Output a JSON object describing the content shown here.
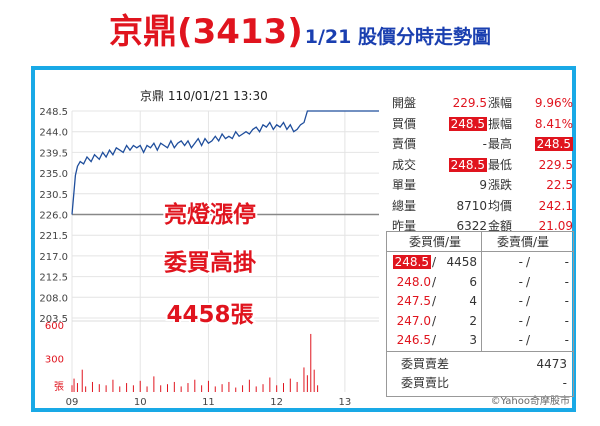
{
  "title": {
    "main": "京鼎(3413)",
    "sub": "1/21 股價分時走勢圖"
  },
  "chart_data": {
    "type": "line",
    "header": "京鼎  110/01/21 13:30",
    "price_axis": [
      "248.5",
      "244.0",
      "239.5",
      "235.0",
      "230.5",
      "226.0",
      "221.5",
      "217.0",
      "212.5",
      "208.0",
      "203.5"
    ],
    "volume_axis": [
      "600",
      "300",
      "張"
    ],
    "x_ticks": [
      "09",
      "10",
      "11",
      "12",
      "13"
    ],
    "ref_price": 226.0,
    "ylim": [
      203.5,
      248.5
    ],
    "price_series": {
      "x": [
        9.0,
        9.02,
        9.05,
        9.08,
        9.12,
        9.17,
        9.22,
        9.28,
        9.33,
        9.4,
        9.45,
        9.5,
        9.55,
        9.6,
        9.65,
        9.7,
        9.75,
        9.8,
        9.85,
        9.9,
        9.95,
        10.0,
        10.05,
        10.1,
        10.15,
        10.2,
        10.25,
        10.3,
        10.35,
        10.4,
        10.45,
        10.5,
        10.55,
        10.6,
        10.65,
        10.7,
        10.75,
        10.8,
        10.85,
        10.9,
        10.95,
        11.0,
        11.05,
        11.1,
        11.15,
        11.2,
        11.25,
        11.3,
        11.35,
        11.4,
        11.45,
        11.5,
        11.55,
        11.6,
        11.65,
        11.7,
        11.75,
        11.8,
        11.85,
        11.9,
        11.95,
        12.0,
        12.05,
        12.1,
        12.15,
        12.2,
        12.25,
        12.3,
        12.35,
        12.4,
        12.45,
        12.5,
        12.55,
        12.6,
        13.0,
        13.5
      ],
      "y": [
        226.0,
        229.5,
        234.5,
        236.5,
        237.5,
        237.0,
        238.5,
        237.5,
        239.0,
        238.0,
        239.5,
        238.5,
        240.0,
        239.0,
        240.5,
        240.0,
        239.5,
        241.0,
        240.0,
        241.0,
        240.5,
        241.0,
        239.5,
        241.0,
        240.5,
        241.5,
        240.0,
        241.5,
        241.0,
        240.5,
        242.0,
        240.5,
        241.5,
        242.0,
        241.0,
        242.0,
        240.5,
        241.5,
        242.5,
        241.0,
        242.5,
        241.5,
        242.0,
        243.0,
        242.0,
        243.5,
        242.5,
        243.0,
        242.5,
        244.0,
        243.0,
        243.5,
        244.0,
        243.5,
        244.5,
        245.0,
        244.0,
        245.5,
        245.0,
        246.0,
        244.5,
        245.5,
        245.0,
        246.0,
        244.5,
        245.5,
        244.0,
        244.5,
        245.5,
        246.0,
        248.5,
        248.5,
        248.5,
        248.5,
        248.5,
        248.5
      ]
    },
    "volume_series": {
      "x": [
        9.0,
        9.03,
        9.08,
        9.15,
        9.2,
        9.3,
        9.4,
        9.5,
        9.6,
        9.7,
        9.8,
        9.9,
        10.0,
        10.1,
        10.2,
        10.3,
        10.4,
        10.5,
        10.6,
        10.7,
        10.8,
        10.9,
        11.0,
        11.1,
        11.2,
        11.3,
        11.4,
        11.5,
        11.6,
        11.7,
        11.8,
        11.9,
        12.0,
        12.1,
        12.2,
        12.3,
        12.4,
        12.45,
        12.5,
        12.55,
        12.6
      ],
      "values": [
        60,
        120,
        80,
        200,
        50,
        90,
        70,
        60,
        110,
        50,
        80,
        60,
        100,
        50,
        140,
        60,
        70,
        90,
        50,
        80,
        110,
        60,
        100,
        50,
        70,
        90,
        40,
        60,
        110,
        50,
        70,
        130,
        60,
        80,
        120,
        90,
        220,
        150,
        520,
        200,
        60
      ]
    },
    "annotations": [
      "亮燈漲停",
      "委買高掛",
      "4458張"
    ],
    "watermark": "©Yahoo奇摩股市"
  },
  "quote": {
    "rows": [
      {
        "l1": "開盤",
        "v1": "229.5",
        "l2": "漲幅",
        "v2": "9.96%"
      },
      {
        "l1": "買價",
        "v1": "248.5",
        "l2": "振幅",
        "v2": "8.41%"
      },
      {
        "l1": "賣價",
        "v1": "-",
        "l2": "最高",
        "v2": "248.5"
      },
      {
        "l1": "成交",
        "v1": "248.5",
        "l2": "最低",
        "v2": "229.5"
      },
      {
        "l1": "單量",
        "v1": "9",
        "l2": "漲跌",
        "v2": "22.5"
      },
      {
        "l1": "總量",
        "v1": "8710",
        "l2": "均價",
        "v2": "242.1"
      },
      {
        "l1": "昨量",
        "v1": "6322",
        "l2": "金額",
        "v2": "21.09"
      }
    ],
    "book_headers": {
      "bid": "委買價/量",
      "ask": "委賣價/量"
    },
    "book": [
      {
        "bp": "248.5",
        "bq": "4458",
        "ap": "-",
        "aq": "-"
      },
      {
        "bp": "248.0",
        "bq": "6",
        "ap": "-",
        "aq": "-"
      },
      {
        "bp": "247.5",
        "bq": "4",
        "ap": "-",
        "aq": "-"
      },
      {
        "bp": "247.0",
        "bq": "2",
        "ap": "-",
        "aq": "-"
      },
      {
        "bp": "246.5",
        "bq": "3",
        "ap": "-",
        "aq": "-"
      }
    ],
    "diff_label": "委買賣差",
    "diff_value": "4473",
    "ratio_label": "委買賣比",
    "ratio_value": "-"
  }
}
